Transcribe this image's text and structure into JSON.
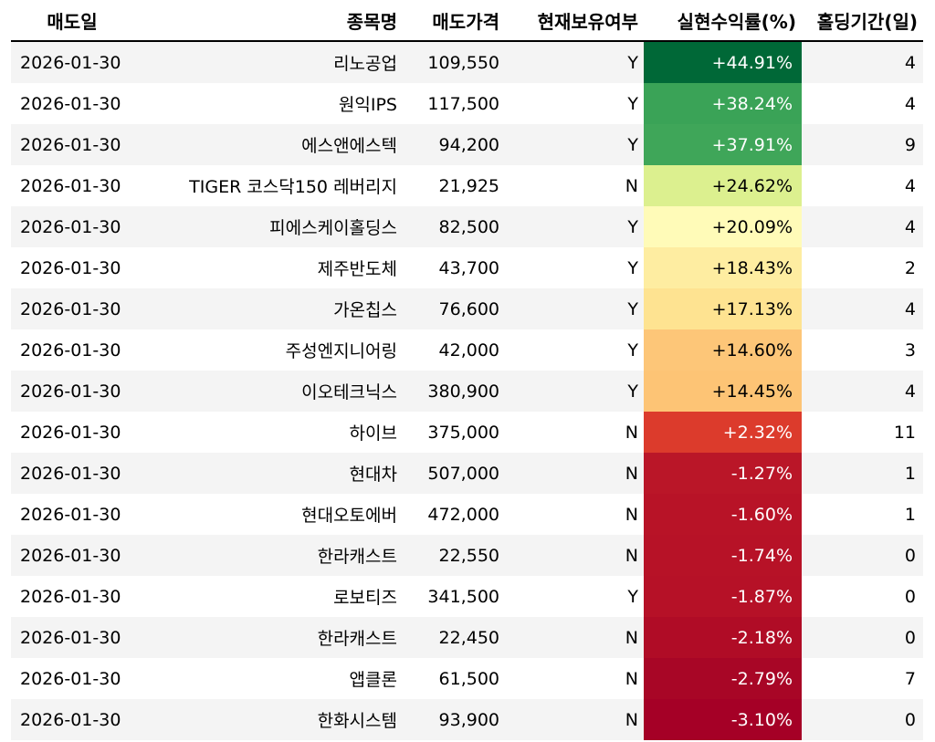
{
  "table": {
    "headers": [
      "매도일",
      "종목명",
      "매도가격",
      "현재보유여부",
      "실현수익률(%)",
      "홀딩기간(일)"
    ],
    "rows": [
      {
        "date": "2026-01-30",
        "name": "리노공업",
        "price": "109,550",
        "held": "Y",
        "ret": "+44.91%",
        "days": "4",
        "color": "#006837",
        "text_color": "#ffffff"
      },
      {
        "date": "2026-01-30",
        "name": "원익IPS",
        "price": "117,500",
        "held": "Y",
        "ret": "+38.24%",
        "days": "4",
        "color": "#3aa357",
        "text_color": "#ffffff"
      },
      {
        "date": "2026-01-30",
        "name": "에스앤에스텍",
        "price": "94,200",
        "held": "Y",
        "ret": "+37.91%",
        "days": "9",
        "color": "#3fa659",
        "text_color": "#ffffff"
      },
      {
        "date": "2026-01-30",
        "name": "TIGER 코스닥150 레버리지",
        "price": "21,925",
        "held": "N",
        "ret": "+24.62%",
        "days": "4",
        "color": "#dcf08f",
        "text_color": "#000000"
      },
      {
        "date": "2026-01-30",
        "name": "피에스케이홀딩스",
        "price": "82,500",
        "held": "Y",
        "ret": "+20.09%",
        "days": "4",
        "color": "#fffbb8",
        "text_color": "#000000"
      },
      {
        "date": "2026-01-30",
        "name": "제주반도체",
        "price": "43,700",
        "held": "Y",
        "ret": "+18.43%",
        "days": "2",
        "color": "#feeda1",
        "text_color": "#000000"
      },
      {
        "date": "2026-01-30",
        "name": "가온칩스",
        "price": "76,600",
        "held": "Y",
        "ret": "+17.13%",
        "days": "4",
        "color": "#fee391",
        "text_color": "#000000"
      },
      {
        "date": "2026-01-30",
        "name": "주성엔지니어링",
        "price": "42,000",
        "held": "Y",
        "ret": "+14.60%",
        "days": "3",
        "color": "#fdc678",
        "text_color": "#000000"
      },
      {
        "date": "2026-01-30",
        "name": "이오테크닉스",
        "price": "380,900",
        "held": "Y",
        "ret": "+14.45%",
        "days": "4",
        "color": "#fdc475",
        "text_color": "#000000"
      },
      {
        "date": "2026-01-30",
        "name": "하이브",
        "price": "375,000",
        "held": "N",
        "ret": "+2.32%",
        "days": "11",
        "color": "#dc3b2c",
        "text_color": "#ffffff"
      },
      {
        "date": "2026-01-30",
        "name": "현대차",
        "price": "507,000",
        "held": "N",
        "ret": "-1.27%",
        "days": "1",
        "color": "#ba1628",
        "text_color": "#ffffff"
      },
      {
        "date": "2026-01-30",
        "name": "현대오토에버",
        "price": "472,000",
        "held": "N",
        "ret": "-1.60%",
        "days": "1",
        "color": "#b81327",
        "text_color": "#ffffff"
      },
      {
        "date": "2026-01-30",
        "name": "한라캐스트",
        "price": "22,550",
        "held": "N",
        "ret": "-1.74%",
        "days": "0",
        "color": "#b71227",
        "text_color": "#ffffff"
      },
      {
        "date": "2026-01-30",
        "name": "로보티즈",
        "price": "341,500",
        "held": "Y",
        "ret": "-1.87%",
        "days": "0",
        "color": "#b61127",
        "text_color": "#ffffff"
      },
      {
        "date": "2026-01-30",
        "name": "한라캐스트",
        "price": "22,450",
        "held": "N",
        "ret": "-2.18%",
        "days": "0",
        "color": "#b00c26",
        "text_color": "#ffffff"
      },
      {
        "date": "2026-01-30",
        "name": "앱클론",
        "price": "61,500",
        "held": "N",
        "ret": "-2.79%",
        "days": "7",
        "color": "#a80626",
        "text_color": "#ffffff"
      },
      {
        "date": "2026-01-30",
        "name": "한화시스템",
        "price": "93,900",
        "held": "N",
        "ret": "-3.10%",
        "days": "0",
        "color": "#a50026",
        "text_color": "#ffffff"
      }
    ]
  }
}
